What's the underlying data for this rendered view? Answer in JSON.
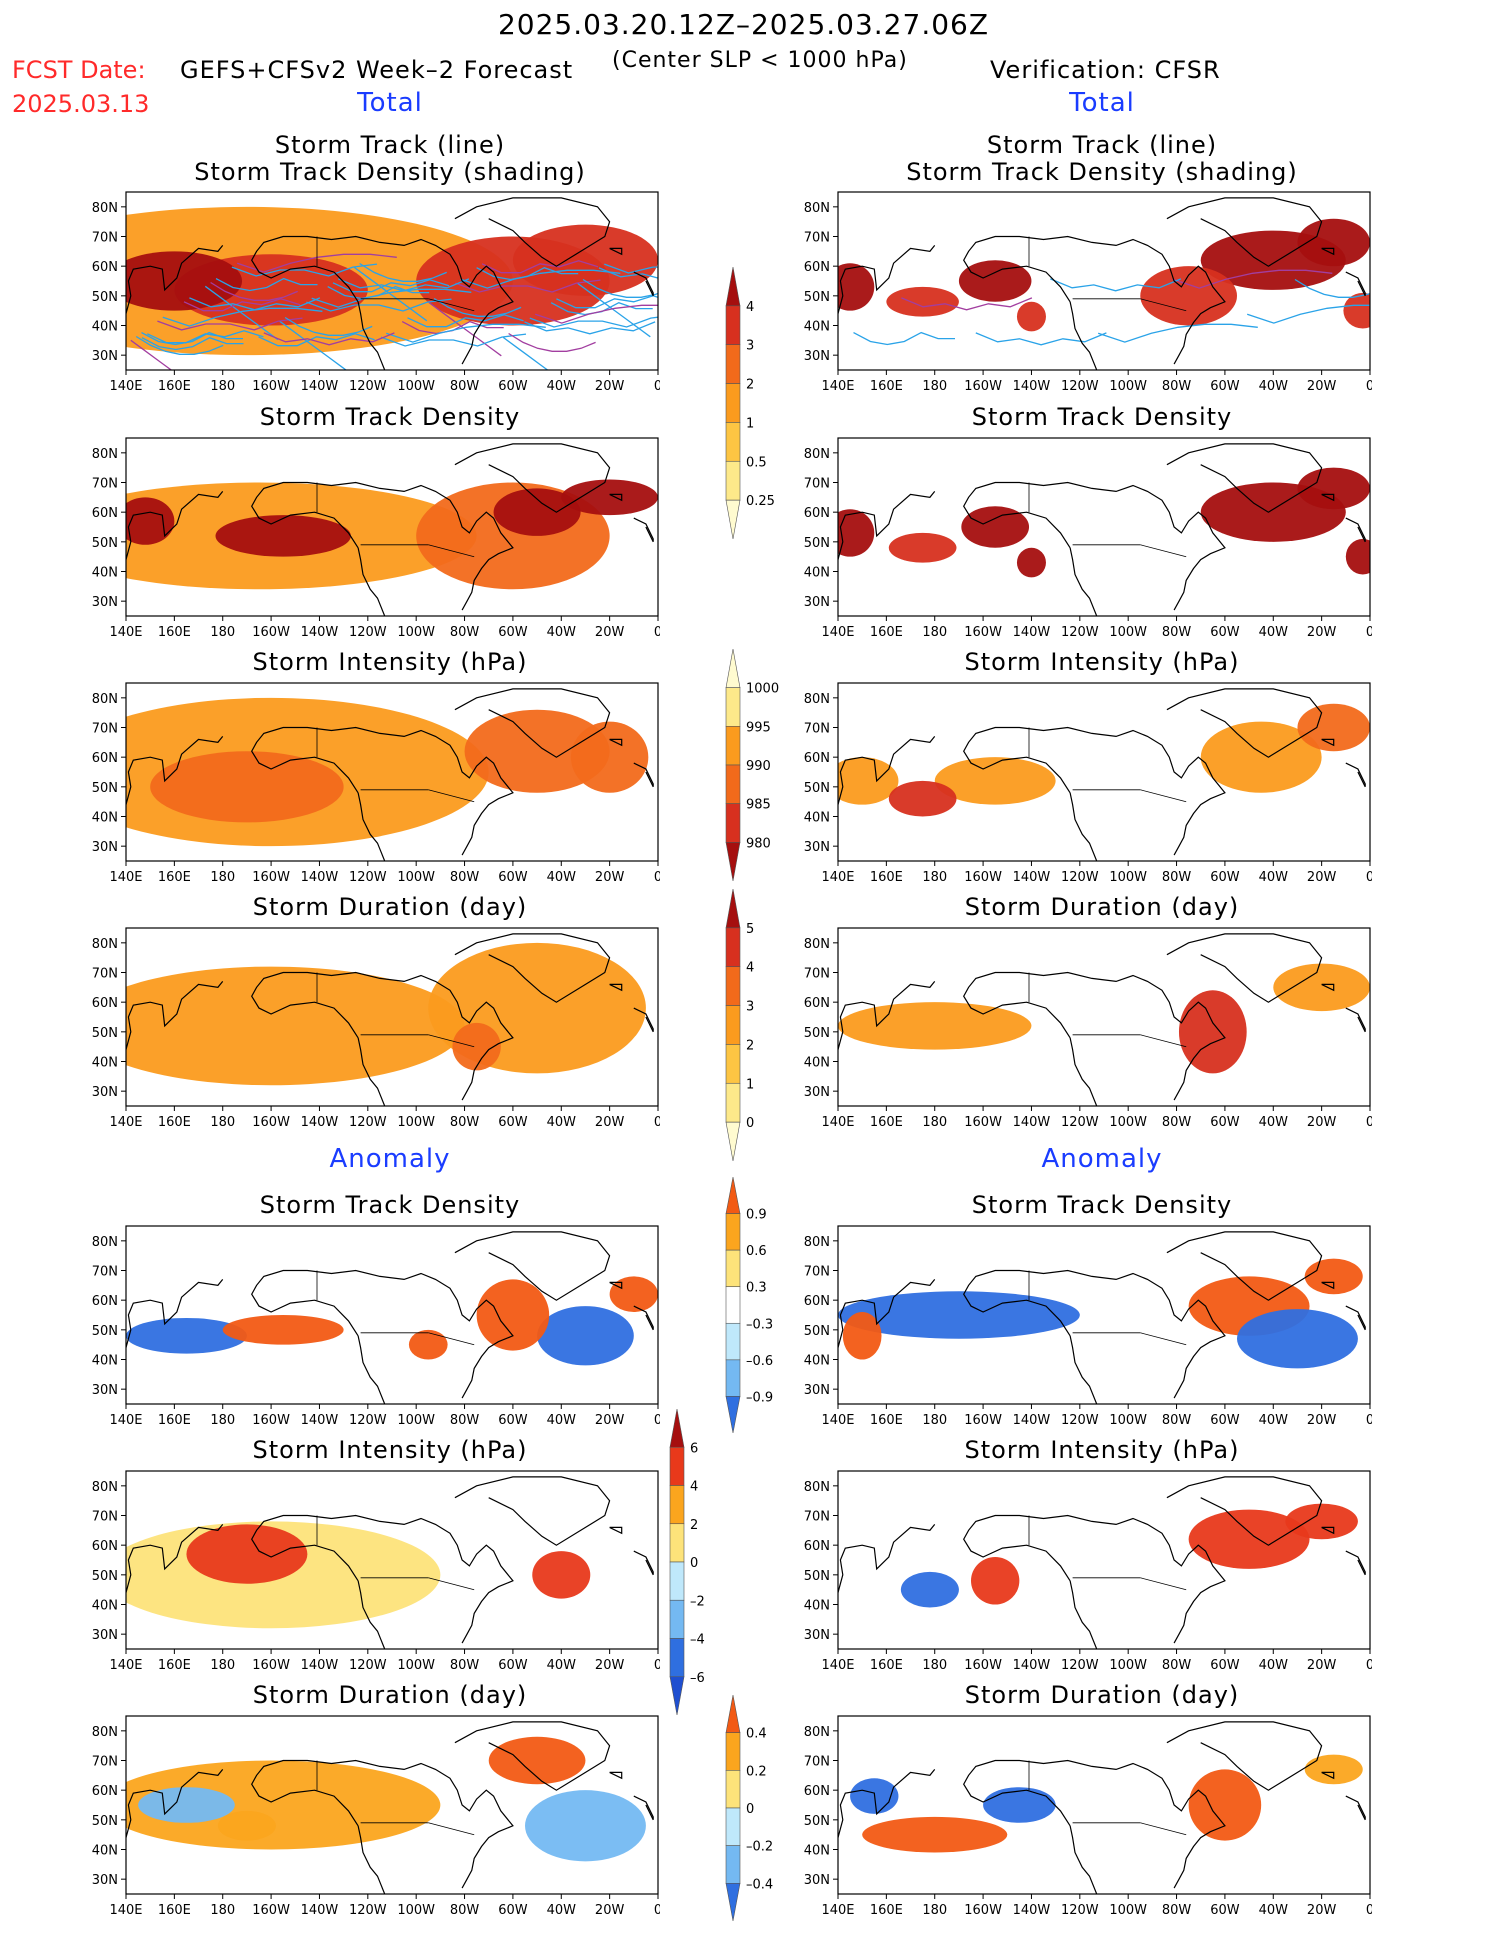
{
  "header": {
    "title": "2025.03.20.12Z–2025.03.27.06Z",
    "fcst_label": "FCST Date:",
    "fcst_date": "2025.03.13",
    "model": "GEFS+CFSv2 Week–2 Forecast",
    "center_slp": "(Center SLP < 1000 hPa)",
    "verification": "Verification: CFSR"
  },
  "sections": {
    "total_left": "Total",
    "total_right": "Total",
    "anomaly_left": "Anomaly",
    "anomaly_right": "Anomaly"
  },
  "panel_titles": {
    "track_line": "Storm Track (line)",
    "track_shading": "Storm Track Density (shading)",
    "density": "Storm Track Density",
    "intensity": "Storm Intensity (hPa)",
    "duration": "Storm Duration (day)"
  },
  "axes": {
    "x_ticks": [
      "140E",
      "160E",
      "180",
      "160W",
      "140W",
      "120W",
      "100W",
      "80W",
      "60W",
      "40W",
      "20W",
      "0"
    ],
    "y_ticks": [
      "30N",
      "40N",
      "50N",
      "60N",
      "70N",
      "80N"
    ],
    "lon_range": [
      140,
      360
    ],
    "lat_range": [
      25,
      85
    ]
  },
  "colorbars": {
    "total_density": {
      "labels": [
        "4",
        "3",
        "2",
        "1",
        "0.5",
        "0.25"
      ],
      "colors": [
        "#a50f0f",
        "#d7301f",
        "#f26a1b",
        "#fb9b1e",
        "#fdc543",
        "#fde98a",
        "#fffbd0"
      ]
    },
    "total_intensity": {
      "labels": [
        "1000",
        "995",
        "990",
        "985",
        "980"
      ],
      "colors": [
        "#fffbd0",
        "#fde98a",
        "#fb9b1e",
        "#f26a1b",
        "#d7301f",
        "#a50f0f"
      ]
    },
    "total_duration": {
      "labels": [
        "5",
        "4",
        "3",
        "2",
        "1",
        "0"
      ],
      "colors": [
        "#a50f0f",
        "#d7301f",
        "#f26a1b",
        "#fb9b1e",
        "#fdc543",
        "#fde98a",
        "#fffbd0"
      ]
    },
    "anom_density": {
      "labels": [
        "0.9",
        "0.6",
        "0.3",
        "–0.3",
        "–0.6",
        "–0.9"
      ],
      "colors": [
        "#f25a14",
        "#fba51e",
        "#fde37a",
        "#ffffff",
        "#bfe8fb",
        "#74b9f2",
        "#2f6fe0"
      ]
    },
    "anom_intensity": {
      "labels": [
        "6",
        "4",
        "2",
        "0",
        "–2",
        "–4",
        "–6"
      ],
      "colors": [
        "#a50f0f",
        "#e8391b",
        "#fba51e",
        "#fde37a",
        "#bfe8fb",
        "#74b9f2",
        "#2f6fe0",
        "#1f4fd0"
      ]
    },
    "anom_duration": {
      "labels": [
        "0.4",
        "0.2",
        "0",
        "–0.2",
        "–0.4"
      ],
      "colors": [
        "#f25a14",
        "#fba51e",
        "#fde37a",
        "#bfe8fb",
        "#74b9f2",
        "#2f6fe0"
      ]
    }
  },
  "chart_data": [
    {
      "type": "heatmap",
      "panel": "forecast-track",
      "title": "Storm Track (line) / Storm Track Density (shading)",
      "field": "forecast track density",
      "blobs": [
        {
          "lon": 160,
          "lat": 55,
          "v": 4,
          "rx": 28,
          "ry": 10
        },
        {
          "lon": 200,
          "lat": 52,
          "v": 3,
          "rx": 40,
          "ry": 12
        },
        {
          "lon": 300,
          "lat": 55,
          "v": 3,
          "rx": 40,
          "ry": 15
        },
        {
          "lon": 330,
          "lat": 62,
          "v": 3,
          "rx": 30,
          "ry": 12
        },
        {
          "lon": 190,
          "lat": 55,
          "v": 1,
          "rx": 110,
          "ry": 25
        }
      ]
    },
    {
      "type": "heatmap",
      "panel": "verif-track",
      "title": "Storm Track (line) / Storm Track Density (shading)",
      "field": "verification track density",
      "blobs": [
        {
          "lon": 145,
          "lat": 53,
          "v": 4,
          "rx": 10,
          "ry": 8
        },
        {
          "lon": 175,
          "lat": 48,
          "v": 3,
          "rx": 15,
          "ry": 5
        },
        {
          "lon": 205,
          "lat": 55,
          "v": 4,
          "rx": 15,
          "ry": 7
        },
        {
          "lon": 220,
          "lat": 43,
          "v": 3,
          "rx": 6,
          "ry": 5
        },
        {
          "lon": 285,
          "lat": 50,
          "v": 3,
          "rx": 20,
          "ry": 10
        },
        {
          "lon": 320,
          "lat": 62,
          "v": 4,
          "rx": 30,
          "ry": 10
        },
        {
          "lon": 345,
          "lat": 68,
          "v": 4,
          "rx": 15,
          "ry": 8
        },
        {
          "lon": 357,
          "lat": 45,
          "v": 3,
          "rx": 8,
          "ry": 6
        }
      ]
    },
    {
      "type": "heatmap",
      "panel": "forecast-density",
      "title": "Storm Track Density",
      "field": "forecast track density",
      "blobs": [
        {
          "lon": 148,
          "lat": 57,
          "v": 4,
          "rx": 12,
          "ry": 8
        },
        {
          "lon": 205,
          "lat": 52,
          "v": 4,
          "rx": 28,
          "ry": 7
        },
        {
          "lon": 310,
          "lat": 60,
          "v": 4,
          "rx": 18,
          "ry": 8
        },
        {
          "lon": 340,
          "lat": 65,
          "v": 4,
          "rx": 20,
          "ry": 6
        },
        {
          "lon": 300,
          "lat": 52,
          "v": 2,
          "rx": 40,
          "ry": 18
        },
        {
          "lon": 195,
          "lat": 52,
          "v": 1,
          "rx": 90,
          "ry": 18
        }
      ]
    },
    {
      "type": "heatmap",
      "panel": "verif-density",
      "title": "Storm Track Density",
      "field": "verification track density",
      "blobs": [
        {
          "lon": 145,
          "lat": 53,
          "v": 4,
          "rx": 10,
          "ry": 8
        },
        {
          "lon": 175,
          "lat": 48,
          "v": 3,
          "rx": 14,
          "ry": 5
        },
        {
          "lon": 205,
          "lat": 55,
          "v": 4,
          "rx": 14,
          "ry": 7
        },
        {
          "lon": 220,
          "lat": 43,
          "v": 4,
          "rx": 6,
          "ry": 5
        },
        {
          "lon": 320,
          "lat": 60,
          "v": 4,
          "rx": 30,
          "ry": 10
        },
        {
          "lon": 345,
          "lat": 68,
          "v": 4,
          "rx": 15,
          "ry": 7
        },
        {
          "lon": 357,
          "lat": 45,
          "v": 4,
          "rx": 7,
          "ry": 6
        }
      ]
    },
    {
      "type": "heatmap",
      "panel": "forecast-intensity",
      "title": "Storm Intensity (hPa)",
      "field": "forecast storm intensity",
      "blobs": [
        {
          "lon": 190,
          "lat": 50,
          "v": 988,
          "rx": 40,
          "ry": 12
        },
        {
          "lon": 310,
          "lat": 62,
          "v": 988,
          "rx": 30,
          "ry": 14
        },
        {
          "lon": 340,
          "lat": 60,
          "v": 986,
          "rx": 16,
          "ry": 12
        },
        {
          "lon": 200,
          "lat": 55,
          "v": 994,
          "rx": 90,
          "ry": 25
        }
      ]
    },
    {
      "type": "heatmap",
      "panel": "verif-intensity",
      "title": "Storm Intensity (hPa)",
      "field": "verification storm intensity",
      "blobs": [
        {
          "lon": 175,
          "lat": 46,
          "v": 983,
          "rx": 14,
          "ry": 6
        },
        {
          "lon": 150,
          "lat": 52,
          "v": 990,
          "rx": 15,
          "ry": 8
        },
        {
          "lon": 205,
          "lat": 52,
          "v": 992,
          "rx": 25,
          "ry": 8
        },
        {
          "lon": 315,
          "lat": 60,
          "v": 992,
          "rx": 25,
          "ry": 12
        },
        {
          "lon": 345,
          "lat": 70,
          "v": 988,
          "rx": 15,
          "ry": 8
        }
      ]
    },
    {
      "type": "heatmap",
      "panel": "forecast-duration",
      "title": "Storm Duration (day)",
      "field": "forecast storm duration",
      "blobs": [
        {
          "lon": 200,
          "lat": 52,
          "v": 2,
          "rx": 80,
          "ry": 20
        },
        {
          "lon": 310,
          "lat": 58,
          "v": 2,
          "rx": 45,
          "ry": 22
        },
        {
          "lon": 285,
          "lat": 45,
          "v": 3,
          "rx": 10,
          "ry": 8
        }
      ]
    },
    {
      "type": "heatmap",
      "panel": "verif-duration",
      "title": "Storm Duration (day)",
      "field": "verification storm duration",
      "blobs": [
        {
          "lon": 295,
          "lat": 50,
          "v": 4,
          "rx": 14,
          "ry": 14
        },
        {
          "lon": 180,
          "lat": 52,
          "v": 2,
          "rx": 40,
          "ry": 8
        },
        {
          "lon": 340,
          "lat": 65,
          "v": 2,
          "rx": 20,
          "ry": 8
        }
      ]
    },
    {
      "type": "heatmap",
      "panel": "forecast-anom-density",
      "title": "Storm Track Density",
      "field": "forecast density anomaly",
      "blobs": [
        {
          "lon": 165,
          "lat": 48,
          "v": -0.9,
          "rx": 25,
          "ry": 6
        },
        {
          "lon": 205,
          "lat": 50,
          "v": 0.9,
          "rx": 25,
          "ry": 5
        },
        {
          "lon": 300,
          "lat": 55,
          "v": 0.9,
          "rx": 15,
          "ry": 12
        },
        {
          "lon": 330,
          "lat": 48,
          "v": -0.9,
          "rx": 20,
          "ry": 10
        },
        {
          "lon": 350,
          "lat": 62,
          "v": 0.9,
          "rx": 10,
          "ry": 6
        },
        {
          "lon": 265,
          "lat": 45,
          "v": 0.9,
          "rx": 8,
          "ry": 5
        }
      ]
    },
    {
      "type": "heatmap",
      "panel": "verif-anom-density",
      "title": "Storm Track Density",
      "field": "verification density anomaly",
      "blobs": [
        {
          "lon": 190,
          "lat": 55,
          "v": -0.9,
          "rx": 50,
          "ry": 8
        },
        {
          "lon": 310,
          "lat": 58,
          "v": 0.9,
          "rx": 25,
          "ry": 10
        },
        {
          "lon": 330,
          "lat": 47,
          "v": -0.9,
          "rx": 25,
          "ry": 10
        },
        {
          "lon": 345,
          "lat": 68,
          "v": 0.9,
          "rx": 12,
          "ry": 6
        },
        {
          "lon": 150,
          "lat": 48,
          "v": 0.9,
          "rx": 8,
          "ry": 8
        }
      ]
    },
    {
      "type": "heatmap",
      "panel": "forecast-anom-intensity",
      "title": "Storm Intensity (hPa)",
      "field": "forecast intensity anomaly",
      "blobs": [
        {
          "lon": 190,
          "lat": 57,
          "v": 5,
          "rx": 25,
          "ry": 10
        },
        {
          "lon": 320,
          "lat": 50,
          "v": 5,
          "rx": 12,
          "ry": 8
        },
        {
          "lon": 200,
          "lat": 50,
          "v": 1,
          "rx": 70,
          "ry": 18
        }
      ]
    },
    {
      "type": "heatmap",
      "panel": "verif-anom-intensity",
      "title": "Storm Intensity (hPa)",
      "field": "verification intensity anomaly",
      "blobs": [
        {
          "lon": 205,
          "lat": 48,
          "v": 5,
          "rx": 10,
          "ry": 8
        },
        {
          "lon": 178,
          "lat": 45,
          "v": -5,
          "rx": 12,
          "ry": 6
        },
        {
          "lon": 310,
          "lat": 62,
          "v": 4,
          "rx": 25,
          "ry": 10
        },
        {
          "lon": 340,
          "lat": 68,
          "v": 5,
          "rx": 15,
          "ry": 6
        }
      ]
    },
    {
      "type": "heatmap",
      "panel": "forecast-anom-duration",
      "title": "Storm Duration (day)",
      "field": "forecast duration anomaly",
      "blobs": [
        {
          "lon": 310,
          "lat": 70,
          "v": 0.4,
          "rx": 20,
          "ry": 8
        },
        {
          "lon": 190,
          "lat": 48,
          "v": 0.3,
          "rx": 12,
          "ry": 5
        },
        {
          "lon": 330,
          "lat": 48,
          "v": -0.3,
          "rx": 25,
          "ry": 12
        },
        {
          "lon": 165,
          "lat": 55,
          "v": -0.3,
          "rx": 20,
          "ry": 6
        },
        {
          "lon": 200,
          "lat": 55,
          "v": 0.2,
          "rx": 70,
          "ry": 15
        }
      ]
    },
    {
      "type": "heatmap",
      "panel": "verif-anom-duration",
      "title": "Storm Duration (day)",
      "field": "verification duration anomaly",
      "blobs": [
        {
          "lon": 300,
          "lat": 55,
          "v": 0.4,
          "rx": 15,
          "ry": 12
        },
        {
          "lon": 180,
          "lat": 45,
          "v": 0.4,
          "rx": 30,
          "ry": 6
        },
        {
          "lon": 215,
          "lat": 55,
          "v": -0.4,
          "rx": 15,
          "ry": 6
        },
        {
          "lon": 155,
          "lat": 58,
          "v": -0.4,
          "rx": 10,
          "ry": 6
        },
        {
          "lon": 345,
          "lat": 67,
          "v": 0.3,
          "rx": 12,
          "ry": 5
        }
      ]
    }
  ]
}
